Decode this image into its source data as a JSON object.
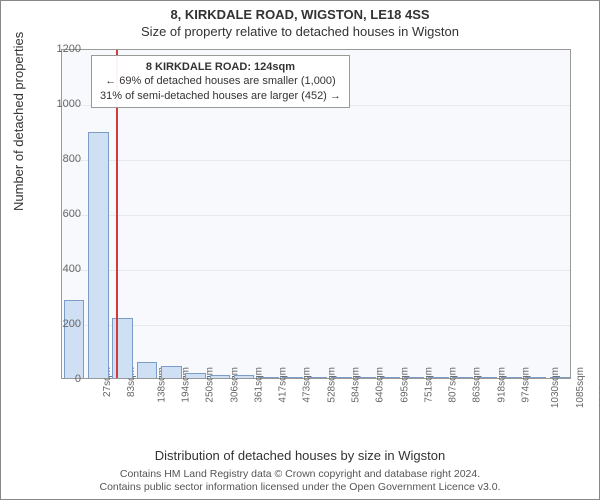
{
  "title_main": "8, KIRKDALE ROAD, WIGSTON, LE18 4SS",
  "title_sub": "Size of property relative to detached houses in Wigston",
  "ylabel": "Number of detached properties",
  "xlabel": "Distribution of detached houses by size in Wigston",
  "footer_line1": "Contains HM Land Registry data © Crown copyright and database right 2024.",
  "footer_line2": "Contains public sector information licensed under the Open Government Licence v3.0.",
  "info_box": {
    "line1": "8 KIRKDALE ROAD: 124sqm",
    "line2": "← 69% of detached houses are smaller (1,000)",
    "line3": "31% of semi-detached houses are larger (452) →"
  },
  "chart": {
    "type": "bar",
    "ylim": [
      0,
      1200
    ],
    "ytick_step": 200,
    "grid_color": "#e6e9ef",
    "plot_bg": "#f7f9fc",
    "bar_color": "#cfe0f4",
    "bar_border": "#7a9cc6",
    "marker_color": "#d23b3b",
    "marker_x_value": 124,
    "x_start": 27,
    "x_step": 55.7,
    "x_count": 21,
    "x_suffix": "sqm",
    "values": [
      285,
      895,
      220,
      60,
      45,
      20,
      10,
      10,
      5,
      3,
      3,
      2,
      2,
      1,
      1,
      1,
      1,
      1,
      1,
      1,
      1
    ]
  }
}
